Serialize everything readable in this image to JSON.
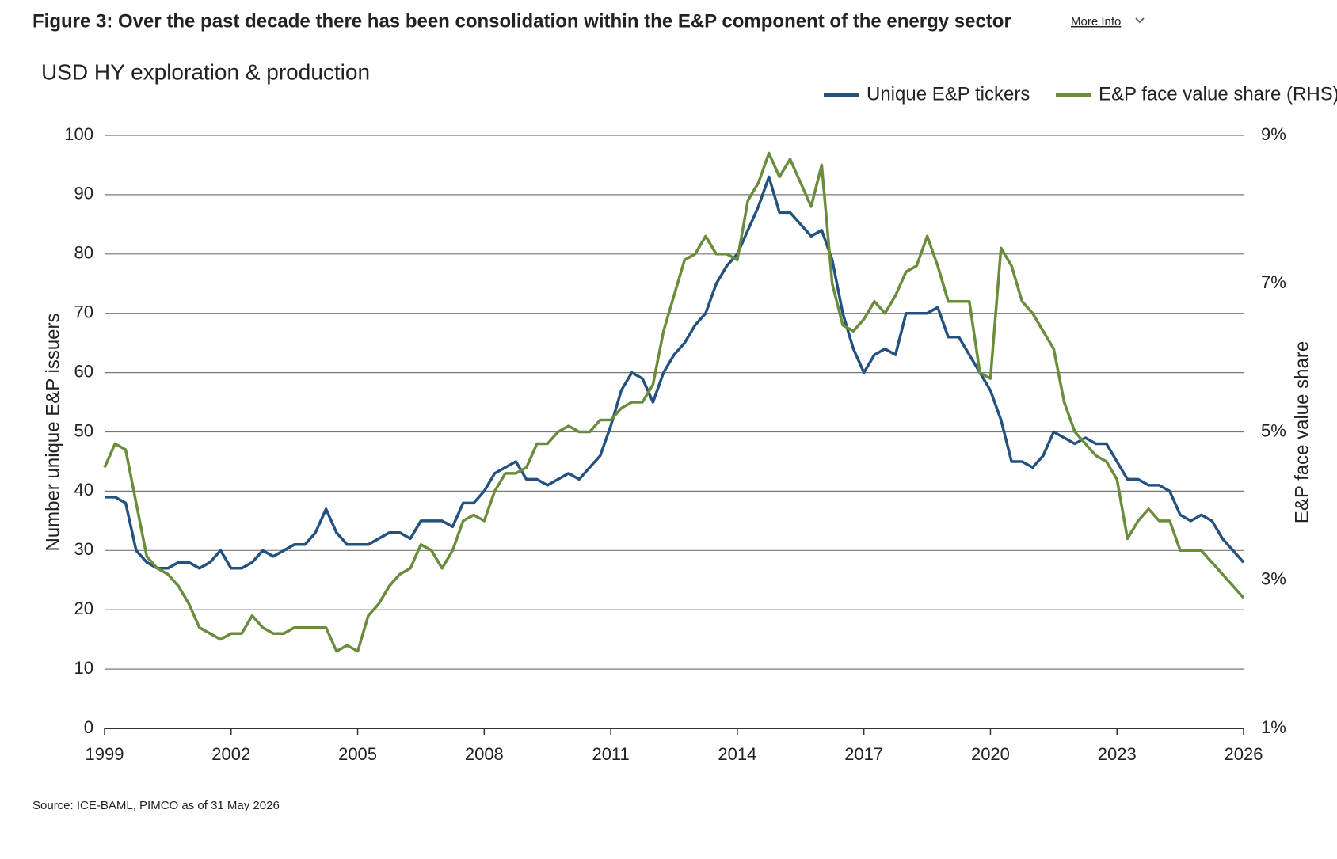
{
  "header": {
    "figure_title": "Figure 3: Over the past decade there has been consolidation within the E&P component of the energy sector",
    "more_info": "More Info"
  },
  "source": "Source: ICE-BAML, PIMCO as of 31 May 2026",
  "chart_data": {
    "type": "line",
    "title": "USD HY exploration & production",
    "y_label": "Number unique E&P issuers",
    "y2_label": "E&P face value share",
    "x": [
      1999,
      1999.25,
      1999.5,
      1999.75,
      2000,
      2000.25,
      2000.5,
      2000.75,
      2001,
      2001.25,
      2001.5,
      2001.75,
      2002,
      2002.25,
      2002.5,
      2002.75,
      2003,
      2003.25,
      2003.5,
      2003.75,
      2004,
      2004.25,
      2004.5,
      2004.75,
      2005,
      2005.25,
      2005.5,
      2005.75,
      2006,
      2006.25,
      2006.5,
      2006.75,
      2007,
      2007.25,
      2007.5,
      2007.75,
      2008,
      2008.25,
      2008.5,
      2008.75,
      2009,
      2009.25,
      2009.5,
      2009.75,
      2010,
      2010.25,
      2010.5,
      2010.75,
      2011,
      2011.25,
      2011.5,
      2011.75,
      2012,
      2012.25,
      2012.5,
      2012.75,
      2013,
      2013.25,
      2013.5,
      2013.75,
      2014,
      2014.25,
      2014.5,
      2014.75,
      2015,
      2015.25,
      2015.5,
      2015.75,
      2016,
      2016.25,
      2016.5,
      2016.75,
      2017,
      2017.25,
      2017.5,
      2017.75,
      2018,
      2018.25,
      2018.5,
      2018.75,
      2019,
      2019.25,
      2019.5,
      2019.75,
      2020,
      2020.25,
      2020.5,
      2020.75,
      2021,
      2021.25,
      2021.5,
      2021.75,
      2022,
      2022.25,
      2022.5,
      2022.75,
      2023,
      2023.25,
      2023.5,
      2023.75,
      2024,
      2024.25,
      2024.5,
      2024.75,
      2025,
      2025.25,
      2025.5,
      2025.75,
      2026
    ],
    "series": [
      {
        "name": "Unique E&P tickers",
        "color": "#24527f",
        "values": [
          39,
          39,
          38,
          30,
          28,
          27,
          27,
          28,
          28,
          27,
          28,
          30,
          27,
          27,
          28,
          30,
          29,
          30,
          31,
          31,
          33,
          37,
          33,
          31,
          31,
          31,
          32,
          33,
          33,
          32,
          35,
          35,
          35,
          34,
          38,
          38,
          40,
          43,
          44,
          45,
          42,
          42,
          41,
          42,
          43,
          42,
          44,
          46,
          51,
          57,
          60,
          59,
          55,
          60,
          63,
          65,
          68,
          70,
          75,
          78,
          80,
          84,
          88,
          93,
          87,
          87,
          85,
          83,
          84,
          79,
          70,
          64,
          60,
          63,
          64,
          63,
          70,
          70,
          70,
          71,
          66,
          66,
          63,
          60,
          57,
          52,
          45,
          45,
          44,
          46,
          50,
          49,
          48,
          49,
          48,
          48,
          45,
          42,
          42,
          41,
          41,
          40,
          36,
          35,
          36,
          35,
          32,
          30,
          28
        ]
      },
      {
        "name": "E&P face value share (RHS)",
        "color": "#6a8c3c",
        "axis": "y2",
        "values": [
          4.52,
          4.84,
          4.76,
          4.04,
          3.32,
          3.16,
          3.08,
          2.92,
          2.68,
          2.36,
          2.28,
          2.2,
          2.28,
          2.28,
          2.52,
          2.36,
          2.28,
          2.28,
          2.36,
          2.36,
          2.36,
          2.36,
          2.04,
          2.12,
          2.04,
          2.52,
          2.68,
          2.92,
          3.08,
          3.16,
          3.48,
          3.4,
          3.16,
          3.4,
          3.8,
          3.88,
          3.8,
          4.2,
          4.44,
          4.44,
          4.52,
          4.84,
          4.84,
          5.0,
          5.08,
          5.0,
          5.0,
          5.16,
          5.16,
          5.32,
          5.4,
          5.4,
          5.64,
          6.36,
          6.84,
          7.32,
          7.4,
          7.64,
          7.4,
          7.4,
          7.32,
          8.12,
          8.36,
          8.76,
          8.44,
          8.68,
          8.36,
          8.04,
          8.6,
          7.0,
          6.44,
          6.36,
          6.52,
          6.76,
          6.6,
          6.84,
          7.16,
          7.24,
          7.64,
          7.24,
          6.76,
          6.76,
          6.76,
          5.8,
          5.72,
          7.48,
          7.24,
          6.76,
          6.6,
          6.36,
          6.12,
          5.4,
          5.0,
          4.84,
          4.68,
          4.6,
          4.36,
          3.56,
          3.8,
          3.96,
          3.8,
          3.8,
          3.4,
          3.4,
          3.4,
          3.24,
          3.08,
          2.92,
          2.76
        ]
      }
    ],
    "xlim": [
      1999,
      2026
    ],
    "xticks": [
      1999,
      2002,
      2005,
      2008,
      2011,
      2014,
      2017,
      2020,
      2023,
      2026
    ],
    "ylim": [
      0,
      100
    ],
    "yticks": [
      0,
      10,
      20,
      30,
      40,
      50,
      60,
      70,
      80,
      90,
      100
    ],
    "y2lim": [
      1,
      9
    ],
    "y2ticks": [
      {
        "value": 1,
        "label": "1%"
      },
      {
        "value": 3,
        "label": "3%"
      },
      {
        "value": 5,
        "label": "5%"
      },
      {
        "value": 7,
        "label": "7%"
      },
      {
        "value": 9,
        "label": "9%"
      }
    ],
    "grid": true
  }
}
